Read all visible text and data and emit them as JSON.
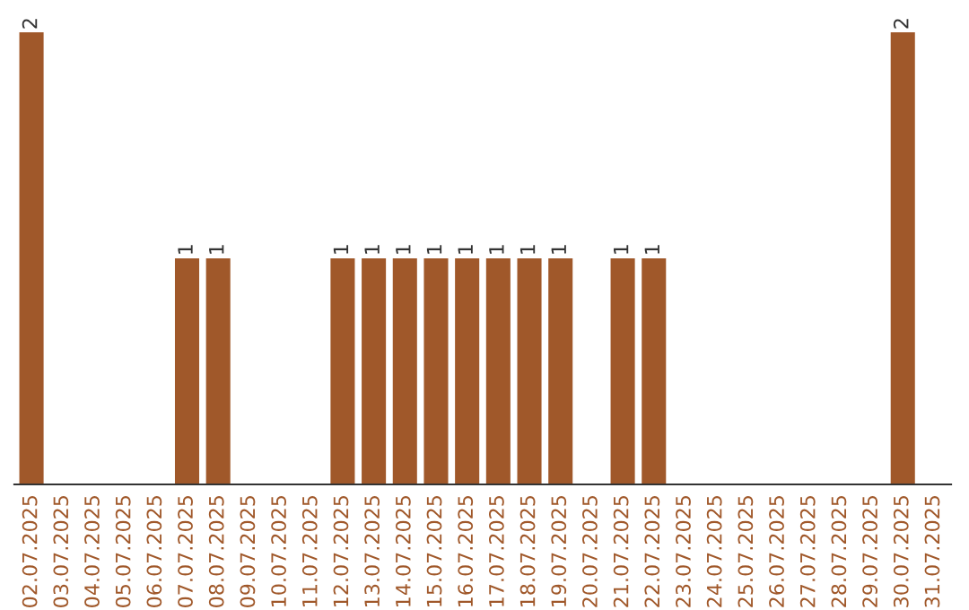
{
  "chart_data": {
    "type": "bar",
    "categories": [
      "02.07.2025",
      "03.07.2025",
      "04.07.2025",
      "05.07.2025",
      "06.07.2025",
      "07.07.2025",
      "08.07.2025",
      "09.07.2025",
      "10.07.2025",
      "11.07.2025",
      "12.07.2025",
      "13.07.2025",
      "14.07.2025",
      "15.07.2025",
      "16.07.2025",
      "17.07.2025",
      "18.07.2025",
      "19.07.2025",
      "20.07.2025",
      "21.07.2025",
      "22.07.2025",
      "23.07.2025",
      "24.07.2025",
      "25.07.2025",
      "26.07.2025",
      "27.07.2025",
      "28.07.2025",
      "29.07.2025",
      "30.07.2025",
      "31.07.2025"
    ],
    "values": [
      2,
      0,
      0,
      0,
      0,
      1,
      1,
      0,
      0,
      0,
      1,
      1,
      1,
      1,
      1,
      1,
      1,
      1,
      0,
      1,
      1,
      0,
      0,
      0,
      0,
      0,
      0,
      0,
      2,
      0
    ],
    "value_labels": [
      "2",
      null,
      null,
      null,
      null,
      "1",
      "1",
      null,
      null,
      null,
      "1",
      "1",
      "1",
      "1",
      "1",
      "1",
      "1",
      "1",
      null,
      "1",
      "1",
      null,
      null,
      null,
      null,
      null,
      null,
      null,
      "2",
      null
    ],
    "color": "#a0582a",
    "ylim": [
      0,
      2
    ],
    "tick_labels": "x",
    "grid": false,
    "legend": false
  }
}
